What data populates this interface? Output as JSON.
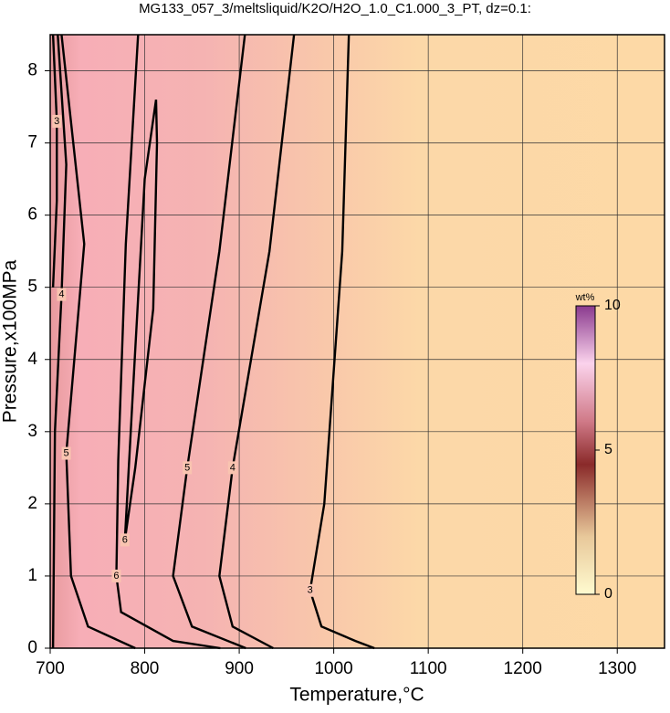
{
  "chart_data": {
    "type": "contour",
    "title": "MG133_057_3/meltsliquid/K2O/H2O_1.0_C1.000_3_PT, dz=0.1:",
    "xlabel": "Temperature,°C",
    "ylabel": "Pressure,x100MPa",
    "xlim": [
      700,
      1350
    ],
    "ylim": [
      0,
      8.5
    ],
    "xticks": [
      700,
      800,
      900,
      1000,
      1100,
      1200,
      1300
    ],
    "yticks": [
      0,
      1,
      2,
      3,
      4,
      5,
      6,
      7,
      8
    ],
    "grid": true,
    "contours": [
      {
        "level": 3,
        "x": [
          1016,
          1009,
          990,
          975,
          987,
          1023,
          1043
        ],
        "y": [
          8.5,
          5.5,
          2.0,
          0.8,
          0.3,
          0.1,
          0
        ]
      },
      {
        "level": 4,
        "x": [
          958,
          932,
          893,
          879,
          893,
          936
        ],
        "y": [
          8.5,
          5.5,
          2.5,
          1.0,
          0.3,
          0
        ]
      },
      {
        "level": 5,
        "x": [
          906,
          879,
          845,
          830,
          850,
          907
        ],
        "y": [
          8.5,
          5.5,
          2.5,
          1.0,
          0.3,
          0
        ]
      },
      {
        "level": 6,
        "x": [
          793,
          780,
          772,
          770,
          775,
          830,
          880
        ],
        "y": [
          8.5,
          5.6,
          2.6,
          1.0,
          0.5,
          0.1,
          0
        ]
      },
      {
        "level": 6,
        "x": [
          812,
          800,
          787,
          779,
          790,
          809,
          813,
          812
        ],
        "y": [
          7.6,
          6.5,
          3.43,
          1.5,
          2.5,
          4.7,
          7.0,
          7.6
        ]
      },
      {
        "level": 5,
        "x": [
          712,
          736,
          717,
          722,
          740,
          790
        ],
        "y": [
          8.5,
          5.6,
          2.7,
          1.0,
          0.3,
          0
        ]
      },
      {
        "level": 4,
        "x": [
          708,
          717,
          712,
          705,
          703
        ],
        "y": [
          8.5,
          6.7,
          4.9,
          3.0,
          0
        ]
      },
      {
        "level": 3,
        "x": [
          703,
          707,
          707,
          703
        ],
        "y": [
          8.5,
          7.3,
          6.2,
          5.0
        ]
      }
    ],
    "colorbar": {
      "label": "wt%",
      "lim": [
        0,
        10
      ],
      "ticks": [
        0,
        5,
        10
      ]
    }
  }
}
